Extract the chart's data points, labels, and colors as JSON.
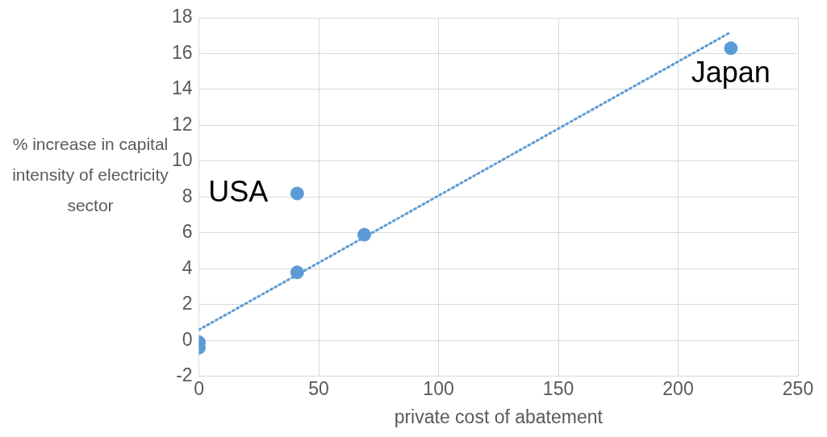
{
  "chart_data": {
    "type": "scatter",
    "xlabel": "private cost of abatement",
    "ylabel": "% increase in capital intensity of electricity sector",
    "series": [
      {
        "color": "#5b9bd5",
        "x": [
          0,
          0,
          41,
          41,
          69,
          222
        ],
        "values": [
          -0.1,
          -0.4,
          8.2,
          3.8,
          5.9,
          16.3
        ],
        "marker": "circle"
      },
      {
        "type": "line",
        "color": "#5b9bd5",
        "x": [
          0,
          222
        ],
        "values": [
          0.6,
          17.2
        ],
        "line_style": "dotted",
        "marker": "none"
      }
    ],
    "xlim": [
      0,
      250
    ],
    "xticks": [
      0,
      50,
      100,
      150,
      200,
      250
    ],
    "ylim": [
      -2,
      18
    ],
    "yticks": [
      -2,
      0,
      2,
      4,
      6,
      8,
      10,
      12,
      14,
      16,
      18
    ],
    "grid": true,
    "legend": false,
    "annotations": [
      {
        "text": "USA",
        "x": 41,
        "y": 8.2
      },
      {
        "text": "Japan",
        "x": 222,
        "y": 16.3
      }
    ]
  }
}
